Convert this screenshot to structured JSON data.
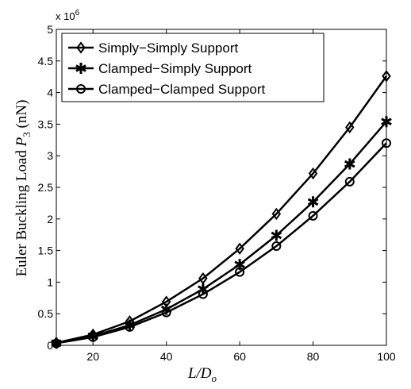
{
  "chart_data": {
    "type": "line",
    "title": "",
    "xlabel_main": "L/D",
    "xlabel_sub": "o",
    "ylabel_main": "Euler Buckling Load ",
    "ylabel_var": "P",
    "ylabel_var_sub": "3",
    "ylabel_unit": " (nN)",
    "xlim": [
      10,
      100
    ],
    "ylim": [
      0,
      5000000
    ],
    "xticks": [
      20,
      40,
      60,
      80,
      100
    ],
    "yticks": [
      0,
      0.5,
      1,
      1.5,
      2,
      2.5,
      3,
      3.5,
      4,
      4.5,
      5
    ],
    "ytick_labels": [
      "0",
      "0.5",
      "1",
      "1.5",
      "2",
      "2.5",
      "3",
      "3.5",
      "4",
      "4.5",
      "5"
    ],
    "y_exponent_base": "x 10",
    "y_exponent_power": "6",
    "grid": false,
    "legend_position": "top-left",
    "x": [
      10,
      20,
      30,
      40,
      50,
      60,
      70,
      80,
      90,
      100
    ],
    "series": [
      {
        "name": "Simply−Simply Support",
        "marker": "diamond",
        "values": [
          40000,
          170000,
          380000,
          690000,
          1060000,
          1530000,
          2080000,
          2720000,
          3450000,
          4260000
        ]
      },
      {
        "name": "Clamped−Simply Support",
        "marker": "star",
        "values": [
          35000,
          145000,
          320000,
          570000,
          890000,
          1280000,
          1740000,
          2270000,
          2870000,
          3540000
        ]
      },
      {
        "name": "Clamped−Clamped Support",
        "marker": "circle",
        "values": [
          32000,
          130000,
          290000,
          520000,
          810000,
          1160000,
          1570000,
          2050000,
          2590000,
          3200000
        ]
      }
    ]
  }
}
